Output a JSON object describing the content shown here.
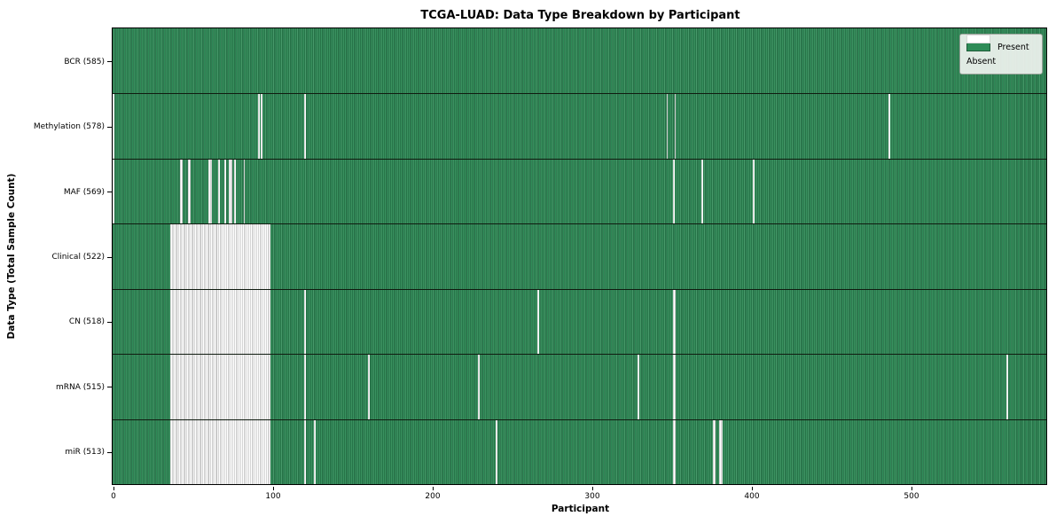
{
  "title": "TCGA-LUAD: Data Type Breakdown by Participant",
  "xlabel": "Participant",
  "ylabel": "Data Type (Total Sample Count)",
  "legend": {
    "present_label": "Present",
    "absent_label": "Absent"
  },
  "colors": {
    "present": "#2e8b57",
    "present_edge": "#1e5c39",
    "absent": "#ffffff",
    "absent_edge": "#ababab",
    "frame": "#000000",
    "legend_bg": "#f0f3f0"
  },
  "chart_data": {
    "type": "heatmap",
    "title": "TCGA-LUAD: Data Type Breakdown by Participant",
    "xlabel": "Participant",
    "ylabel": "Data Type (Total Sample Count)",
    "legend_entries": [
      "Present",
      "Absent"
    ],
    "legend_position": "upper right",
    "grid": false,
    "x_ticks": [
      0,
      100,
      200,
      300,
      400,
      500
    ],
    "x_range": [
      0,
      585
    ],
    "participant_total": 585,
    "cell_states": {
      "present": 1,
      "absent": 0
    },
    "rows": [
      {
        "name": "BCR",
        "label": "BCR (585)",
        "present_count": 585,
        "absent_count": 0,
        "absent_runs": []
      },
      {
        "name": "Methylation",
        "label": "Methylation (578)",
        "present_count": 578,
        "absent_count": 7,
        "absent_runs": [
          [
            0,
            0
          ],
          [
            91,
            91
          ],
          [
            93,
            93
          ],
          [
            120,
            120
          ],
          [
            347,
            347
          ],
          [
            352,
            352
          ],
          [
            486,
            486
          ]
        ]
      },
      {
        "name": "MAF",
        "label": "MAF (569)",
        "present_count": 569,
        "absent_count": 16,
        "absent_runs": [
          [
            0,
            0
          ],
          [
            42,
            43
          ],
          [
            47,
            48
          ],
          [
            60,
            61
          ],
          [
            66,
            66
          ],
          [
            70,
            70
          ],
          [
            73,
            74
          ],
          [
            76,
            76
          ],
          [
            82,
            82
          ],
          [
            351,
            351
          ],
          [
            369,
            369
          ],
          [
            401,
            401
          ]
        ]
      },
      {
        "name": "Clinical",
        "label": "Clinical (522)",
        "present_count": 522,
        "absent_count": 63,
        "absent_runs": [
          [
            36,
            98
          ]
        ]
      },
      {
        "name": "CN",
        "label": "CN (518)",
        "present_count": 518,
        "absent_count": 67,
        "absent_runs": [
          [
            36,
            98
          ],
          [
            120,
            120
          ],
          [
            266,
            266
          ],
          [
            351,
            352
          ]
        ]
      },
      {
        "name": "mRNA",
        "label": "mRNA (515)",
        "present_count": 515,
        "absent_count": 70,
        "absent_runs": [
          [
            36,
            98
          ],
          [
            120,
            120
          ],
          [
            160,
            160
          ],
          [
            229,
            229
          ],
          [
            329,
            329
          ],
          [
            351,
            352
          ],
          [
            560,
            560
          ]
        ]
      },
      {
        "name": "miR",
        "label": "miR (513)",
        "present_count": 513,
        "absent_count": 72,
        "absent_runs": [
          [
            36,
            98
          ],
          [
            120,
            120
          ],
          [
            126,
            126
          ],
          [
            240,
            240
          ],
          [
            351,
            352
          ],
          [
            376,
            377
          ],
          [
            380,
            381
          ]
        ]
      }
    ]
  }
}
